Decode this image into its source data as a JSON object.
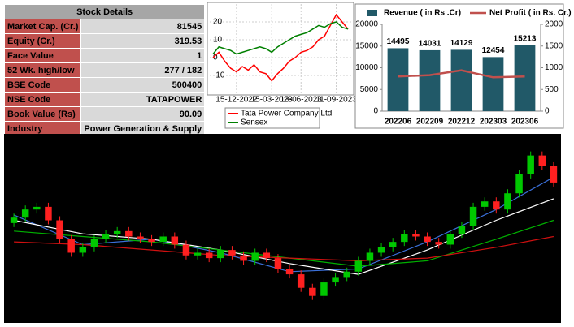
{
  "table": {
    "title": "Stock Details",
    "rows": [
      [
        "Market Cap. (Cr.)",
        81545
      ],
      [
        "Equity (Cr.)",
        319.53
      ],
      [
        "Face Value",
        1
      ],
      [
        "52 Wk. high/low",
        "277 / 182"
      ],
      [
        "BSE Code",
        500400
      ],
      [
        "NSE Code",
        "TATAPOWER"
      ],
      [
        "Book Value (Rs)",
        90.09
      ],
      [
        "Industry",
        "Power Generation & Supply"
      ]
    ]
  },
  "chart_data": [
    {
      "type": "line",
      "categories": [
        null,
        null,
        null,
        null,
        "15-12-2022",
        null,
        null,
        null,
        null,
        null,
        "15-03-2023",
        null,
        null,
        null,
        null,
        "13-06-2023",
        null,
        null,
        null,
        null,
        null,
        "11-09-2023",
        null,
        null
      ],
      "series": [
        {
          "name": "Tata Power Company Ltd",
          "color": "#ff0000",
          "values": [
            0,
            3,
            -2,
            -6,
            -8,
            -5,
            -7,
            -4,
            -8,
            -9,
            -13,
            -9,
            -6,
            -2,
            0,
            3,
            4,
            6,
            10,
            12,
            18,
            24,
            20,
            16
          ]
        },
        {
          "name": "Sensex",
          "color": "#008000",
          "values": [
            2,
            6,
            5,
            4,
            2,
            3,
            4,
            5,
            6,
            5,
            3,
            6,
            8,
            10,
            12,
            13,
            14,
            16,
            18,
            17,
            19,
            20,
            17,
            16
          ]
        }
      ],
      "ylim": [
        -20,
        30
      ],
      "yticks": [
        -10,
        0,
        10,
        20
      ],
      "grid": true,
      "legend": "bottom"
    },
    {
      "type": "bar-line",
      "categories": [
        "202206",
        "202209",
        "202212",
        "202303",
        "202306"
      ],
      "series": [
        {
          "name": "Revenue ( in Rs .Cr)",
          "type": "bar",
          "color": "#215968",
          "values": [
            14495,
            14031,
            14129,
            12454,
            15213
          ]
        },
        {
          "name": "Net Profit ( in Rs. Cr.)",
          "type": "line",
          "axis": "y2",
          "color": "#c0504d",
          "values": [
            800,
            830,
            940,
            780,
            800
          ]
        }
      ],
      "ylim": [
        0,
        20000
      ],
      "yticks": [
        0,
        5000,
        10000,
        15000,
        20000
      ],
      "y2lim": [
        0,
        2000
      ],
      "y2ticks": [
        0,
        500,
        1000,
        1500,
        2000
      ],
      "data_labels": true,
      "legend": "top"
    },
    {
      "type": "candlestick",
      "background": "#000000",
      "up_color": "#00c800",
      "down_color": "#ff2020",
      "open": [
        234,
        238,
        244,
        246,
        236,
        222,
        212,
        216,
        222,
        226,
        228,
        224,
        222,
        220,
        224,
        218,
        210,
        212,
        208,
        214,
        210,
        206,
        212,
        208,
        200,
        196,
        186,
        180,
        190,
        194,
        198,
        206,
        212,
        216,
        220,
        226,
        224,
        220,
        218,
        226,
        232,
        246,
        250,
        244,
        256,
        270,
        284,
        276
      ],
      "high": [
        241,
        247,
        249,
        249,
        239,
        225,
        219,
        225,
        229,
        231,
        231,
        227,
        225,
        227,
        227,
        221,
        215,
        215,
        217,
        217,
        213,
        215,
        215,
        211,
        203,
        199,
        189,
        193,
        197,
        201,
        209,
        215,
        219,
        223,
        229,
        229,
        227,
        223,
        229,
        235,
        249,
        253,
        253,
        259,
        273,
        287,
        287,
        279
      ],
      "low": [
        231,
        235,
        241,
        233,
        219,
        209,
        209,
        213,
        219,
        223,
        221,
        219,
        217,
        217,
        215,
        207,
        207,
        205,
        205,
        207,
        203,
        203,
        205,
        197,
        193,
        183,
        177,
        177,
        187,
        191,
        195,
        203,
        209,
        213,
        217,
        221,
        217,
        215,
        215,
        223,
        229,
        243,
        241,
        241,
        253,
        267,
        273,
        261
      ],
      "close": [
        238,
        244,
        246,
        236,
        222,
        212,
        216,
        222,
        226,
        228,
        224,
        222,
        220,
        224,
        218,
        210,
        212,
        208,
        214,
        210,
        206,
        212,
        208,
        200,
        196,
        186,
        180,
        190,
        194,
        198,
        206,
        212,
        216,
        220,
        226,
        224,
        220,
        218,
        226,
        232,
        246,
        250,
        244,
        256,
        270,
        284,
        276,
        264
      ],
      "ylim": [
        160,
        300
      ],
      "overlays": [
        {
          "color": "#3a6fd8",
          "x": [
            0,
            6,
            12,
            18,
            24,
            30,
            36,
            42,
            47
          ],
          "values": [
            240,
            218,
            222,
            212,
            198,
            200,
            220,
            244,
            268
          ]
        },
        {
          "color": "#ffffff",
          "x": [
            0,
            6,
            12,
            18,
            24,
            30,
            36,
            42,
            47
          ],
          "values": [
            236,
            226,
            222,
            214,
            204,
            196,
            214,
            236,
            252
          ]
        },
        {
          "color": "#00b000",
          "x": [
            0,
            6,
            12,
            18,
            24,
            30,
            36,
            42,
            47
          ],
          "values": [
            228,
            224,
            220,
            214,
            208,
            202,
            206,
            222,
            236
          ]
        },
        {
          "color": "#d01010",
          "x": [
            0,
            6,
            12,
            18,
            24,
            30,
            36,
            42,
            47
          ],
          "values": [
            220,
            218,
            214,
            210,
            208,
            206,
            208,
            216,
            224
          ]
        }
      ]
    }
  ]
}
